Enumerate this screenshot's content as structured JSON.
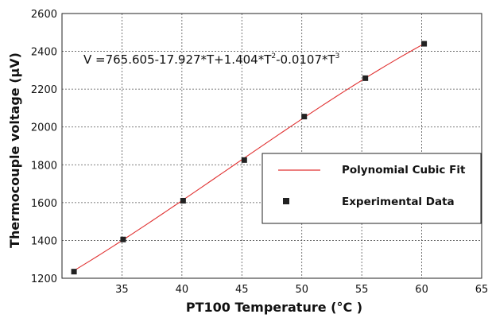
{
  "chart_data": {
    "type": "scatter",
    "xlabel": "PT100 Temperature (°C )",
    "ylabel": "Thermocouple voltage (µV)",
    "xlim": [
      30,
      65
    ],
    "ylim": [
      1200,
      2600
    ],
    "xticks": [
      "35",
      "40",
      "45",
      "50",
      "55",
      "60",
      "65"
    ],
    "yticks": [
      "1200",
      "1400",
      "1600",
      "1800",
      "2000",
      "2200",
      "2400",
      "2600"
    ],
    "grid": true,
    "equation": {
      "prefix": "V =765.605-17.927*T+1.404*T",
      "exp1": "2",
      "mid": "-0.0107*T",
      "exp2": "3"
    },
    "legend": {
      "position": "lower-right",
      "entries": [
        {
          "label": "Polynomial Cubic Fit",
          "marker": "line",
          "color": "#e03030"
        },
        {
          "label": "Experimental Data",
          "marker": "square",
          "color": "#222222"
        }
      ]
    },
    "series": [
      {
        "type": "scatter",
        "color": "#222222",
        "x": [
          31.0,
          35.1,
          40.1,
          45.2,
          50.2,
          55.3,
          60.2
        ],
        "y": [
          1235,
          1405,
          1610,
          1825,
          2055,
          2258,
          2440
        ]
      },
      {
        "type": "line",
        "color": "#e03030",
        "fit": "cubic"
      }
    ]
  }
}
